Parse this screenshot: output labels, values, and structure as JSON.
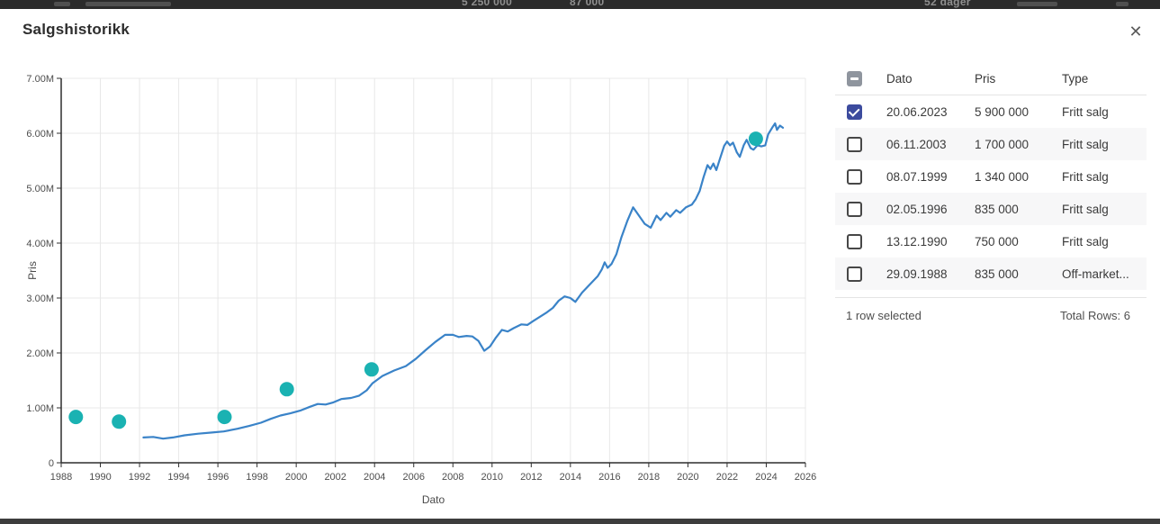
{
  "background": {
    "top_fragments": [
      {
        "text": "5 250 000",
        "x": 513
      },
      {
        "text": "87 000",
        "x": 633
      },
      {
        "text": "52 dager",
        "x": 1027
      }
    ],
    "smudges": [
      {
        "x": 60,
        "w": 18
      },
      {
        "x": 95,
        "w": 95
      },
      {
        "x": 1130,
        "w": 45
      },
      {
        "x": 1240,
        "w": 14
      }
    ]
  },
  "modal": {
    "title": "Salgshistorikk",
    "close_glyph": "✕"
  },
  "chart_data": {
    "type": "line",
    "title": "",
    "xlabel": "Dato",
    "ylabel": "Pris",
    "x_range": [
      1988,
      2026
    ],
    "y_range": [
      0,
      7
    ],
    "y_unit": "M",
    "x_ticks": [
      1988,
      1990,
      1992,
      1994,
      1996,
      1998,
      2000,
      2002,
      2004,
      2006,
      2008,
      2010,
      2012,
      2014,
      2016,
      2018,
      2020,
      2022,
      2024,
      2026
    ],
    "y_ticks": [
      0,
      1,
      2,
      3,
      4,
      5,
      6,
      7
    ],
    "y_tick_labels": [
      "0",
      "1.00M",
      "2.00M",
      "3.00M",
      "4.00M",
      "5.00M",
      "6.00M",
      "7.00M"
    ],
    "grid": true,
    "legend": "none",
    "series": [
      {
        "name": "price_line",
        "type": "line",
        "color": "#3a83c8",
        "points": [
          [
            1992.2,
            0.46
          ],
          [
            1992.7,
            0.47
          ],
          [
            1993.2,
            0.44
          ],
          [
            1993.7,
            0.46
          ],
          [
            1994.3,
            0.5
          ],
          [
            1995.0,
            0.53
          ],
          [
            1995.7,
            0.55
          ],
          [
            1996.3,
            0.57
          ],
          [
            1997.0,
            0.62
          ],
          [
            1997.6,
            0.67
          ],
          [
            1998.2,
            0.73
          ],
          [
            1998.7,
            0.8
          ],
          [
            1999.2,
            0.86
          ],
          [
            1999.7,
            0.9
          ],
          [
            2000.2,
            0.95
          ],
          [
            2000.7,
            1.02
          ],
          [
            2001.1,
            1.07
          ],
          [
            2001.5,
            1.06
          ],
          [
            2001.9,
            1.1
          ],
          [
            2002.3,
            1.16
          ],
          [
            2002.8,
            1.18
          ],
          [
            2003.2,
            1.22
          ],
          [
            2003.6,
            1.32
          ],
          [
            2003.9,
            1.45
          ],
          [
            2004.4,
            1.58
          ],
          [
            2005.0,
            1.68
          ],
          [
            2005.6,
            1.76
          ],
          [
            2006.1,
            1.89
          ],
          [
            2006.6,
            2.05
          ],
          [
            2007.1,
            2.2
          ],
          [
            2007.6,
            2.33
          ],
          [
            2008.0,
            2.33
          ],
          [
            2008.3,
            2.29
          ],
          [
            2008.7,
            2.31
          ],
          [
            2009.0,
            2.3
          ],
          [
            2009.3,
            2.22
          ],
          [
            2009.6,
            2.04
          ],
          [
            2009.9,
            2.12
          ],
          [
            2010.2,
            2.28
          ],
          [
            2010.5,
            2.42
          ],
          [
            2010.8,
            2.39
          ],
          [
            2011.1,
            2.45
          ],
          [
            2011.5,
            2.52
          ],
          [
            2011.8,
            2.51
          ],
          [
            2012.1,
            2.58
          ],
          [
            2012.5,
            2.67
          ],
          [
            2012.8,
            2.74
          ],
          [
            2013.1,
            2.82
          ],
          [
            2013.4,
            2.95
          ],
          [
            2013.7,
            3.03
          ],
          [
            2014.0,
            3.0
          ],
          [
            2014.25,
            2.93
          ],
          [
            2014.6,
            3.1
          ],
          [
            2015.0,
            3.25
          ],
          [
            2015.4,
            3.4
          ],
          [
            2015.6,
            3.52
          ],
          [
            2015.75,
            3.65
          ],
          [
            2015.9,
            3.55
          ],
          [
            2016.1,
            3.62
          ],
          [
            2016.35,
            3.8
          ],
          [
            2016.6,
            4.1
          ],
          [
            2016.9,
            4.4
          ],
          [
            2017.2,
            4.65
          ],
          [
            2017.5,
            4.5
          ],
          [
            2017.8,
            4.35
          ],
          [
            2018.1,
            4.28
          ],
          [
            2018.4,
            4.5
          ],
          [
            2018.6,
            4.42
          ],
          [
            2018.9,
            4.55
          ],
          [
            2019.1,
            4.48
          ],
          [
            2019.4,
            4.6
          ],
          [
            2019.6,
            4.55
          ],
          [
            2019.9,
            4.65
          ],
          [
            2020.2,
            4.7
          ],
          [
            2020.4,
            4.8
          ],
          [
            2020.6,
            4.95
          ],
          [
            2020.8,
            5.2
          ],
          [
            2021.0,
            5.42
          ],
          [
            2021.15,
            5.35
          ],
          [
            2021.3,
            5.45
          ],
          [
            2021.45,
            5.33
          ],
          [
            2021.65,
            5.55
          ],
          [
            2021.85,
            5.77
          ],
          [
            2022.0,
            5.85
          ],
          [
            2022.15,
            5.78
          ],
          [
            2022.3,
            5.83
          ],
          [
            2022.5,
            5.65
          ],
          [
            2022.65,
            5.57
          ],
          [
            2022.85,
            5.78
          ],
          [
            2023.0,
            5.88
          ],
          [
            2023.2,
            5.73
          ],
          [
            2023.35,
            5.7
          ],
          [
            2023.55,
            5.78
          ],
          [
            2023.75,
            5.76
          ],
          [
            2023.95,
            5.78
          ],
          [
            2024.1,
            5.98
          ],
          [
            2024.3,
            6.1
          ],
          [
            2024.45,
            6.18
          ],
          [
            2024.55,
            6.06
          ],
          [
            2024.7,
            6.14
          ],
          [
            2024.85,
            6.1
          ]
        ]
      },
      {
        "name": "sale_points",
        "type": "scatter",
        "color": "#1ab2b2",
        "radius": 8,
        "points": [
          [
            1988.75,
            0.835
          ],
          [
            1990.95,
            0.75
          ],
          [
            1996.34,
            0.835
          ],
          [
            1999.52,
            1.34
          ],
          [
            2003.85,
            1.7
          ],
          [
            2023.47,
            5.9
          ]
        ]
      }
    ]
  },
  "table": {
    "columns": [
      "Dato",
      "Pris",
      "Type"
    ],
    "header_checkbox_state": "indeterminate",
    "rows": [
      {
        "checked": true,
        "dato": "20.06.2023",
        "pris": "5 900 000",
        "type": "Fritt salg"
      },
      {
        "checked": false,
        "dato": "06.11.2003",
        "pris": "1 700 000",
        "type": "Fritt salg"
      },
      {
        "checked": false,
        "dato": "08.07.1999",
        "pris": "1 340 000",
        "type": "Fritt salg"
      },
      {
        "checked": false,
        "dato": "02.05.1996",
        "pris": "835 000",
        "type": "Fritt salg"
      },
      {
        "checked": false,
        "dato": "13.12.1990",
        "pris": "750 000",
        "type": "Fritt salg"
      },
      {
        "checked": false,
        "dato": "29.09.1988",
        "pris": "835 000",
        "type": "Off-market..."
      }
    ],
    "footer": {
      "selected_text": "1 row selected",
      "total_text": "Total Rows: 6"
    }
  },
  "colors": {
    "line": "#3a83c8",
    "dot": "#1ab2b2",
    "axis": "#2e2e2e",
    "grid": "#e8e8e8",
    "checkbox_checked": "#3c4b9e",
    "checkbox_indeterminate": "#8f959e"
  }
}
